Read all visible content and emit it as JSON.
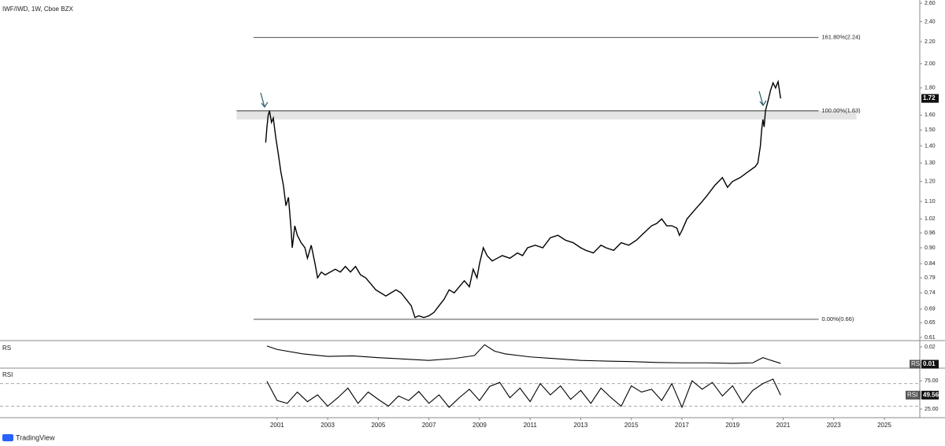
{
  "chart_data": [
    {
      "type": "line",
      "title": "IWF/IWD, 1W, Cboe BZX",
      "log_scale": true,
      "xlim": [
        1990.05,
        2026.4
      ],
      "xticks": [
        2001,
        2003,
        2005,
        2007,
        2009,
        2011,
        2013,
        2015,
        2017,
        2019,
        2021,
        2023,
        2025
      ],
      "ylim": [
        0.61,
        2.6
      ],
      "yticks": [
        {
          "value": 0.61,
          "label": "0.61"
        },
        {
          "value": 0.65,
          "label": "0.65"
        },
        {
          "value": 0.69,
          "label": "0.69"
        },
        {
          "value": 0.74,
          "label": "0.74"
        },
        {
          "value": 0.79,
          "label": "0.79"
        },
        {
          "value": 0.84,
          "label": "0.84"
        },
        {
          "value": 0.9,
          "label": "0.90"
        },
        {
          "value": 0.96,
          "label": "0.96"
        },
        {
          "value": 1.02,
          "label": "1.02"
        },
        {
          "value": 1.1,
          "label": "1.10"
        },
        {
          "value": 1.2,
          "label": "1.20"
        },
        {
          "value": 1.3,
          "label": "1.30"
        },
        {
          "value": 1.4,
          "label": "1.40"
        },
        {
          "value": 1.5,
          "label": "1.50"
        },
        {
          "value": 1.6,
          "label": "1.60"
        },
        {
          "value": 1.8,
          "label": "1.80"
        },
        {
          "value": 2.0,
          "label": "2.00"
        },
        {
          "value": 2.2,
          "label": "2.20"
        },
        {
          "value": 2.4,
          "label": "2.40"
        },
        {
          "value": 2.6,
          "label": "2.60"
        }
      ],
      "fib_levels": [
        {
          "label": "161.80%(2.24)",
          "value": 2.24,
          "xrange": [
            2000.07,
            2022.4
          ]
        },
        {
          "label": "100.00%(1.63)",
          "value": 1.63,
          "xrange": [
            1999.4,
            2022.4
          ]
        },
        {
          "label": "0.00%(0.66)",
          "value": 0.66,
          "xrange": [
            2000.07,
            2022.4
          ]
        }
      ],
      "highlight_band": {
        "range": [
          1.57,
          1.63
        ],
        "xrange": [
          1999.4,
          2023.9
        ],
        "color": "#e4e4e4"
      },
      "series": [
        {
          "color": "#000000",
          "last_value": 1.72,
          "x": [
            2000.55,
            2000.6,
            2000.65,
            2000.7,
            2000.78,
            2000.85,
            2000.95,
            2001.05,
            2001.15,
            2001.25,
            2001.35,
            2001.45,
            2001.55,
            2001.6,
            2001.7,
            2001.8,
            2001.95,
            2002.1,
            2002.2,
            2002.35,
            2002.5,
            2002.6,
            2002.75,
            2002.9,
            2003.1,
            2003.3,
            2003.5,
            2003.7,
            2003.9,
            2004.1,
            2004.3,
            2004.5,
            2004.7,
            2004.9,
            2005.1,
            2005.3,
            2005.5,
            2005.7,
            2005.9,
            2006.1,
            2006.3,
            2006.45,
            2006.6,
            2006.8,
            2007.0,
            2007.2,
            2007.4,
            2007.6,
            2007.8,
            2008.0,
            2008.2,
            2008.4,
            2008.6,
            2008.75,
            2008.9,
            2009.0,
            2009.15,
            2009.3,
            2009.5,
            2009.7,
            2009.9,
            2010.2,
            2010.5,
            2010.7,
            2010.9,
            2011.2,
            2011.5,
            2011.8,
            2012.1,
            2012.4,
            2012.7,
            2013.0,
            2013.2,
            2013.5,
            2013.8,
            2014.0,
            2014.3,
            2014.6,
            2014.9,
            2015.2,
            2015.5,
            2015.8,
            2016.0,
            2016.2,
            2016.4,
            2016.6,
            2016.8,
            2016.9,
            2017.0,
            2017.2,
            2017.5,
            2017.8,
            2018.0,
            2018.3,
            2018.6,
            2018.8,
            2019.0,
            2019.3,
            2019.6,
            2019.9,
            2020.0,
            2020.1,
            2020.15,
            2020.2,
            2020.25,
            2020.3,
            2020.4,
            2020.5,
            2020.6,
            2020.7,
            2020.8,
            2020.9
          ],
          "values": [
            1.42,
            1.52,
            1.6,
            1.63,
            1.55,
            1.58,
            1.45,
            1.35,
            1.25,
            1.18,
            1.08,
            1.12,
            0.98,
            0.9,
            0.99,
            0.95,
            0.92,
            0.9,
            0.86,
            0.91,
            0.84,
            0.79,
            0.81,
            0.8,
            0.81,
            0.82,
            0.81,
            0.83,
            0.81,
            0.83,
            0.8,
            0.79,
            0.77,
            0.75,
            0.74,
            0.73,
            0.74,
            0.75,
            0.74,
            0.72,
            0.7,
            0.665,
            0.67,
            0.665,
            0.67,
            0.68,
            0.7,
            0.72,
            0.75,
            0.74,
            0.76,
            0.78,
            0.76,
            0.82,
            0.79,
            0.84,
            0.9,
            0.87,
            0.85,
            0.86,
            0.87,
            0.86,
            0.88,
            0.87,
            0.9,
            0.91,
            0.9,
            0.94,
            0.95,
            0.93,
            0.92,
            0.9,
            0.89,
            0.88,
            0.91,
            0.9,
            0.89,
            0.92,
            0.91,
            0.93,
            0.96,
            0.99,
            1.0,
            1.02,
            0.99,
            0.99,
            0.98,
            0.95,
            0.97,
            1.02,
            1.06,
            1.1,
            1.13,
            1.18,
            1.22,
            1.17,
            1.2,
            1.22,
            1.25,
            1.28,
            1.3,
            1.4,
            1.5,
            1.57,
            1.52,
            1.63,
            1.7,
            1.78,
            1.84,
            1.8,
            1.85,
            1.72
          ]
        }
      ]
    },
    {
      "type": "line",
      "label": "RS",
      "ylim": [
        0.0082,
        0.0227
      ],
      "yticks": [
        0.02,
        0.01
      ],
      "series": [
        {
          "name": "RS",
          "color": "#000000",
          "last_value": 0.01,
          "x": [
            2000.6,
            2001,
            2002,
            2003,
            2004,
            2005,
            2006,
            2007,
            2008,
            2008.8,
            2009.2,
            2009.6,
            2010,
            2011,
            2012,
            2013,
            2014,
            2015,
            2016,
            2017,
            2018,
            2019,
            2019.8,
            2020.2,
            2020.4,
            2020.9
          ],
          "values": [
            0.0205,
            0.0185,
            0.016,
            0.0145,
            0.0148,
            0.0138,
            0.013,
            0.0122,
            0.0133,
            0.015,
            0.0212,
            0.0175,
            0.016,
            0.0142,
            0.0132,
            0.0122,
            0.0118,
            0.0115,
            0.011,
            0.0108,
            0.0108,
            0.0105,
            0.0108,
            0.0138,
            0.0128,
            0.0105
          ]
        }
      ]
    },
    {
      "type": "line",
      "label": "RSI",
      "ylim": [
        11,
        96
      ],
      "yticks": [
        {
          "value": 75,
          "label": "75.00"
        },
        {
          "value": 25,
          "label": "25.00"
        }
      ],
      "bands": [
        70,
        30
      ],
      "series": [
        {
          "name": "RSI",
          "color": "#000000",
          "last_value": 49.56,
          "x": [
            2000.6,
            2001.0,
            2001.4,
            2001.8,
            2002.2,
            2002.6,
            2003.0,
            2003.4,
            2003.8,
            2004.2,
            2004.6,
            2005.0,
            2005.4,
            2005.8,
            2006.2,
            2006.6,
            2007.0,
            2007.4,
            2007.8,
            2008.2,
            2008.6,
            2009.0,
            2009.4,
            2009.8,
            2010.2,
            2010.6,
            2011.0,
            2011.4,
            2011.8,
            2012.2,
            2012.6,
            2013.0,
            2013.4,
            2013.8,
            2014.2,
            2014.6,
            2015.0,
            2015.4,
            2015.8,
            2016.2,
            2016.6,
            2017.0,
            2017.4,
            2017.8,
            2018.2,
            2018.6,
            2019.0,
            2019.4,
            2019.8,
            2020.2,
            2020.6,
            2020.9
          ],
          "values": [
            74,
            40,
            35,
            55,
            38,
            50,
            30,
            45,
            62,
            35,
            55,
            42,
            30,
            48,
            40,
            56,
            35,
            50,
            28,
            45,
            60,
            40,
            65,
            72,
            45,
            62,
            38,
            70,
            50,
            66,
            42,
            58,
            35,
            62,
            45,
            30,
            66,
            55,
            60,
            40,
            70,
            28,
            75,
            60,
            72,
            48,
            66,
            36,
            58,
            70,
            78,
            49.56
          ]
        }
      ]
    }
  ],
  "brand": "TradingView"
}
